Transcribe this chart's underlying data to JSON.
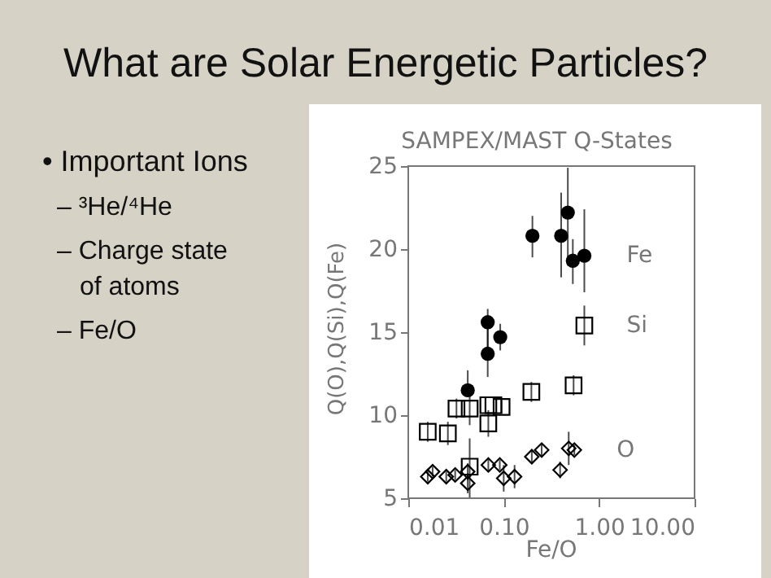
{
  "chart_data": {
    "type": "scatter",
    "title": "What are Solar Energetic Particles?",
    "subtitle": "SAMPEX/MAST Q-States",
    "annotations": [
      "• Important Ions",
      "– ³He/⁴He",
      "– Charge state of atoms",
      "– Fe/O"
    ],
    "xlabel": "Fe/O",
    "ylabel": "Q(O),Q(Si),Q(Fe)",
    "log": "x",
    "xlim": [
      0.01,
      10
    ],
    "xticks": [
      {
        "value": 0.01,
        "label": "0.01"
      },
      {
        "value": 0.1,
        "label": "0.10"
      },
      {
        "value": 1,
        "label": "1.00"
      },
      {
        "value": 10,
        "label": "10.00"
      }
    ],
    "ylim": [
      5,
      25
    ],
    "yticks": [
      5,
      10,
      15,
      20,
      25
    ],
    "series": [
      {
        "name": "Fe",
        "color": "#000000",
        "marker": "circle",
        "x": [
          0.2,
          0.4,
          0.47,
          0.53,
          0.7,
          0.068,
          0.068,
          0.092,
          0.042
        ],
        "values": [
          20.8,
          20.8,
          22.2,
          19.3,
          19.6,
          15.6,
          13.7,
          14.7,
          11.5
        ],
        "errors": [
          [
            19.5,
            22.0
          ],
          [
            18.3,
            23.4
          ],
          [
            19.0,
            24.9
          ],
          [
            17.9,
            20.6
          ],
          [
            17.4,
            22.4
          ],
          [
            14.0,
            16.4
          ],
          [
            12.3,
            15.6
          ],
          [
            13.9,
            15.5
          ],
          [
            11.5,
            12.7
          ]
        ]
      },
      {
        "name": "Si",
        "color": "#000000",
        "marker": "square",
        "x": [
          0.016,
          0.026,
          0.032,
          0.044,
          0.069,
          0.078,
          0.095,
          0.069,
          0.195,
          0.54,
          0.7,
          0.044
        ],
        "values": [
          9.0,
          8.9,
          10.4,
          10.4,
          10.6,
          10.6,
          10.5,
          9.5,
          11.4,
          11.8,
          15.4,
          6.9
        ],
        "errors": [
          0.6,
          0.7,
          0.6,
          1.0,
          null,
          null,
          0.4,
          0.8,
          0.6,
          0.6,
          1.2,
          [
            5.0,
            8.6
          ]
        ]
      },
      {
        "name": "O",
        "color": "#000000",
        "marker": "diamond",
        "x": [
          0.016,
          0.018,
          0.025,
          0.031,
          0.042,
          0.042,
          0.069,
          0.091,
          0.1,
          0.13,
          0.197,
          0.25,
          0.39,
          0.48,
          0.55
        ],
        "values": [
          6.3,
          6.6,
          6.3,
          6.4,
          6.6,
          5.9,
          7.0,
          7.0,
          6.2,
          6.3,
          7.5,
          7.9,
          6.7,
          8.0,
          7.9
        ],
        "errors": [
          0.3,
          0.3,
          0.3,
          0.3,
          0.5,
          0.6,
          0.4,
          0.3,
          0.8,
          0.7,
          0.4,
          0.4,
          0.5,
          1.0,
          0.3
        ]
      }
    ]
  }
}
